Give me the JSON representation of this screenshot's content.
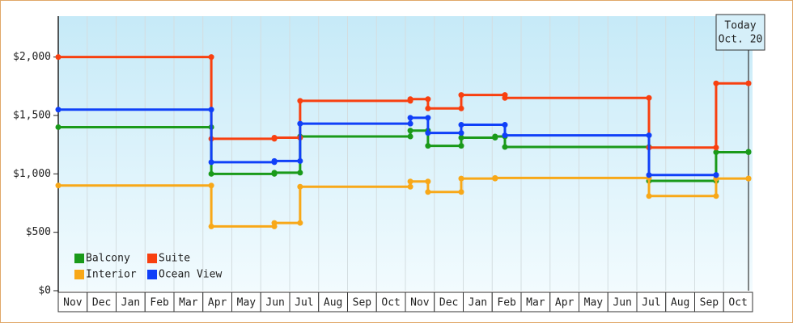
{
  "chart_data": {
    "type": "step-line",
    "categories": [
      "Nov",
      "Dec",
      "Jan",
      "Feb",
      "Mar",
      "Apr",
      "May",
      "Jun",
      "Jul",
      "Aug",
      "Sep",
      "Oct",
      "Nov",
      "Dec",
      "Jan",
      "Feb",
      "Mar",
      "Apr",
      "May",
      "Jun",
      "Jul",
      "Aug",
      "Sep",
      "Oct"
    ],
    "xlim": [
      0,
      24
    ],
    "ylim": [
      0,
      2350
    ],
    "yticks": [
      {
        "value": 0,
        "label": "$0"
      },
      {
        "value": 500,
        "label": "$500"
      },
      {
        "value": 1000,
        "label": "$1,000"
      },
      {
        "value": 1500,
        "label": "$1,500"
      },
      {
        "value": 2000,
        "label": "$2,000"
      }
    ],
    "legend": "lower left",
    "today": {
      "x": 23.86,
      "label": "Today",
      "date": "Oct. 20"
    },
    "series": [
      {
        "name": "Balcony",
        "color": "#1a9a1a",
        "x": [
          0,
          5.29,
          7.47,
          8.36,
          12.17,
          12.78,
          13.93,
          15.1,
          15.44,
          20.42,
          22.74,
          23.86
        ],
        "values": [
          1400,
          1000,
          1010,
          1320,
          1370,
          1240,
          1310,
          1320,
          1230,
          940,
          1185,
          1190
        ]
      },
      {
        "name": "Suite",
        "color": "#f84010",
        "x": [
          0,
          5.29,
          7.47,
          8.36,
          12.17,
          12.78,
          13.93,
          15.44,
          20.42,
          22.74,
          23.86
        ],
        "values": [
          2000,
          1300,
          1310,
          1625,
          1640,
          1560,
          1675,
          1650,
          1225,
          1775,
          1775
        ]
      },
      {
        "name": "Interior",
        "color": "#f8a818",
        "x": [
          0,
          5.29,
          7.47,
          8.36,
          12.17,
          12.78,
          13.93,
          15.1,
          20.42,
          22.74,
          23.86
        ],
        "values": [
          900,
          550,
          580,
          890,
          935,
          845,
          960,
          965,
          810,
          960,
          960
        ]
      },
      {
        "name": "Ocean View",
        "color": "#1040f8",
        "x": [
          0,
          5.29,
          7.47,
          8.36,
          12.17,
          12.78,
          13.93,
          15.44,
          20.42,
          22.74
        ],
        "values": [
          1550,
          1100,
          1110,
          1430,
          1480,
          1350,
          1420,
          1330,
          990,
          990
        ]
      }
    ]
  }
}
